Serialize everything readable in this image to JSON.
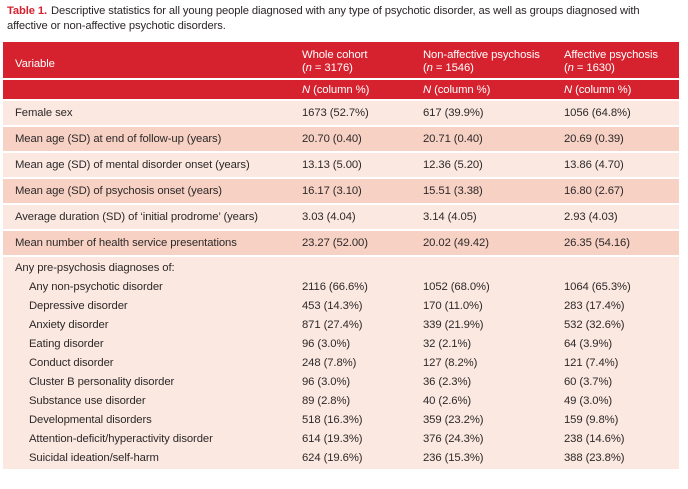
{
  "caption": {
    "label": "Table 1.",
    "text": "Descriptive statistics for all young people diagnosed with any type of psychotic disorder, as well as groups diagnosed with affective or non-affective psychotic disorders."
  },
  "colors": {
    "header_red": "#d6222f",
    "row_light": "#fbe9e1",
    "row_dark": "#f7d2c4",
    "header_text": "#ffffff",
    "body_text": "#2d2829"
  },
  "table": {
    "columns": [
      {
        "title": "Variable"
      },
      {
        "title": "Whole cohort",
        "n_prefix": "(",
        "n_var": "n",
        "n_suffix": " = 3176)",
        "sub_var": "N",
        "sub_rest": " (column %)"
      },
      {
        "title": "Non-affective psychosis",
        "n_prefix": "(",
        "n_var": "n",
        "n_suffix": " = 1546)",
        "sub_var": "N",
        "sub_rest": " (column %)"
      },
      {
        "title": "Affective psychosis",
        "n_prefix": "(",
        "n_var": "n",
        "n_suffix": " = 1630)",
        "sub_var": "N",
        "sub_rest": " (column %)"
      }
    ],
    "rows": [
      {
        "variable": "Female sex",
        "whole_cohort": "1673 (52.7%)",
        "non_affective": "617 (39.9%)",
        "affective": "1056 (64.8%)"
      },
      {
        "variable": "Mean age (SD) at end of follow-up (years)",
        "whole_cohort": "20.70 (0.40)",
        "non_affective": "20.71 (0.40)",
        "affective": "20.69 (0.39)"
      },
      {
        "variable": "Mean age (SD) of mental disorder onset (years)",
        "whole_cohort": "13.13 (5.00)",
        "non_affective": "12.36 (5.20)",
        "affective": "13.86 (4.70)"
      },
      {
        "variable": "Mean age (SD) of psychosis onset (years)",
        "whole_cohort": "16.17 (3.10)",
        "non_affective": "15.51 (3.38)",
        "affective": "16.80 (2.67)"
      },
      {
        "variable": "Average duration (SD) of ‘initial prodrome’ (years)",
        "whole_cohort": "3.03 (4.04)",
        "non_affective": "3.14 (4.05)",
        "affective": "2.93 (4.03)"
      },
      {
        "variable": "Mean number of health service presentations",
        "whole_cohort": "23.27 (52.00)",
        "non_affective": "20.02 (49.42)",
        "affective": "26.35 (54.16)"
      }
    ],
    "section": {
      "header": "Any pre-psychosis diagnoses of:",
      "rows": [
        {
          "variable": "Any non-psychotic disorder",
          "whole_cohort": "2116 (66.6%)",
          "non_affective": "1052 (68.0%)",
          "affective": "1064 (65.3%)"
        },
        {
          "variable": "Depressive disorder",
          "whole_cohort": "453 (14.3%)",
          "non_affective": "170 (11.0%)",
          "affective": "283 (17.4%)"
        },
        {
          "variable": "Anxiety disorder",
          "whole_cohort": "871 (27.4%)",
          "non_affective": "339 (21.9%)",
          "affective": "532 (32.6%)"
        },
        {
          "variable": "Eating disorder",
          "whole_cohort": "96 (3.0%)",
          "non_affective": "32 (2.1%)",
          "affective": "64 (3.9%)"
        },
        {
          "variable": "Conduct disorder",
          "whole_cohort": "248 (7.8%)",
          "non_affective": "127 (8.2%)",
          "affective": "121 (7.4%)"
        },
        {
          "variable": "Cluster B personality disorder",
          "whole_cohort": "96 (3.0%)",
          "non_affective": "36 (2.3%)",
          "affective": "60 (3.7%)"
        },
        {
          "variable": "Substance use disorder",
          "whole_cohort": "89 (2.8%)",
          "non_affective": "40 (2.6%)",
          "affective": "49 (3.0%)"
        },
        {
          "variable": "Developmental disorders",
          "whole_cohort": "518 (16.3%)",
          "non_affective": "359 (23.2%)",
          "affective": "159 (9.8%)"
        },
        {
          "variable": "Attention-deficit/hyperactivity disorder",
          "whole_cohort": "614 (19.3%)",
          "non_affective": "376 (24.3%)",
          "affective": "238 (14.6%)"
        },
        {
          "variable": "Suicidal ideation/self-harm",
          "whole_cohort": "624 (19.6%)",
          "non_affective": "236 (15.3%)",
          "affective": "388 (23.8%)"
        }
      ]
    }
  }
}
